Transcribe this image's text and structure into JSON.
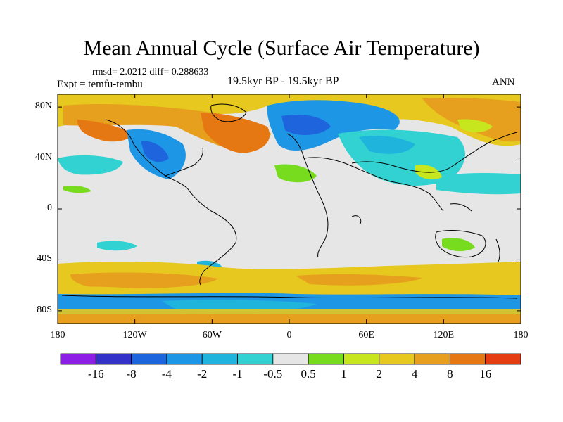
{
  "title": "Mean Annual Cycle (Surface Air Temperature)",
  "stats": "rmsd= 2.0212 diff= 0.288633",
  "expt": "Expt = temfu-tembu",
  "period": "19.5kyr BP - 19.5kyr BP",
  "season": "ANN",
  "map": {
    "lat_ticks": [
      "80N",
      "40N",
      "0",
      "40S",
      "80S"
    ],
    "lon_ticks": [
      "180",
      "120W",
      "60W",
      "0",
      "60E",
      "120E",
      "180"
    ],
    "background_color": "#e6e6e6"
  },
  "colorbar": {
    "colors": [
      "#8c1ee6",
      "#3232c8",
      "#1e64dc",
      "#1e96e6",
      "#1eb4dc",
      "#32d2d2",
      "#e6e6e6",
      "#78dc1e",
      "#c8e61e",
      "#e6c81e",
      "#e6a01e",
      "#e67814",
      "#e63c14"
    ],
    "labels": [
      "-16",
      "-8",
      "-4",
      "-2",
      "-1",
      "-0.5",
      "0.5",
      "1",
      "2",
      "4",
      "8",
      "16"
    ]
  }
}
